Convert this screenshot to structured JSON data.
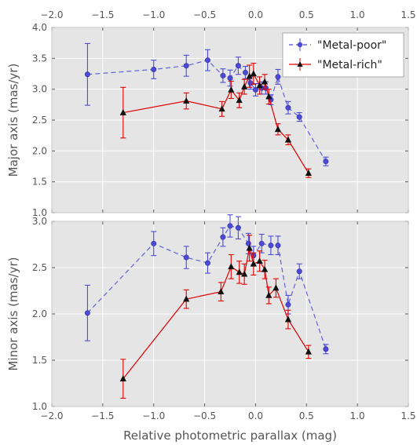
{
  "chart_data": [
    {
      "type": "line",
      "panel": "top",
      "ylabel": "Major axis (mas/yr)",
      "xlim": [
        -2.0,
        1.5
      ],
      "ylim": [
        1.0,
        4.0
      ],
      "x_ticks": [
        "−2.0",
        "−1.5",
        "−1.0",
        "−0.5",
        "0.0",
        "0.5",
        "1.0",
        "1.5"
      ],
      "y_ticks": [
        "1.0",
        "1.5",
        "2.0",
        "2.5",
        "3.0",
        "3.5",
        "4.0"
      ],
      "grid": true,
      "legend_position": "top-right",
      "series": [
        {
          "name": "\"Metal-poor\"",
          "color": "#4a4ad6",
          "style": "dashed",
          "marker": "circle",
          "x": [
            -1.65,
            -1.0,
            -0.68,
            -0.47,
            -0.32,
            -0.25,
            -0.17,
            -0.1,
            -0.05,
            0.0,
            0.06,
            0.1,
            0.15,
            0.22,
            0.32,
            0.43,
            0.69
          ],
          "y": [
            3.24,
            3.32,
            3.38,
            3.47,
            3.22,
            3.18,
            3.38,
            3.27,
            3.1,
            2.99,
            3.02,
            3.02,
            2.83,
            3.2,
            2.7,
            2.55,
            1.83
          ],
          "err": [
            0.5,
            0.15,
            0.17,
            0.17,
            0.11,
            0.13,
            0.14,
            0.1,
            0.1,
            0.1,
            0.1,
            0.1,
            0.08,
            0.12,
            0.1,
            0.07,
            0.07
          ]
        },
        {
          "name": "\"Metal-rich\"",
          "color": "#e00000",
          "style": "solid",
          "marker": "triangle",
          "x": [
            -1.3,
            -0.68,
            -0.33,
            -0.24,
            -0.16,
            -0.11,
            -0.06,
            -0.02,
            0.04,
            0.09,
            0.13,
            0.22,
            0.32,
            0.52
          ],
          "y": [
            2.62,
            2.81,
            2.68,
            2.99,
            2.82,
            3.04,
            3.21,
            3.25,
            3.06,
            3.12,
            2.88,
            2.35,
            2.18,
            1.64
          ],
          "err": [
            0.41,
            0.13,
            0.12,
            0.14,
            0.12,
            0.12,
            0.18,
            0.17,
            0.14,
            0.12,
            0.12,
            0.09,
            0.08,
            0.07
          ]
        }
      ]
    },
    {
      "type": "line",
      "panel": "bottom",
      "xlabel": "Relative photometric parallax (mag)",
      "ylabel": "Minor axis (mas/yr)",
      "xlim": [
        -2.0,
        1.5
      ],
      "ylim": [
        1.0,
        3.0
      ],
      "x_ticks": [
        "−2.0",
        "−1.5",
        "−1.0",
        "−0.5",
        "0.0",
        "0.5",
        "1.0",
        "1.5"
      ],
      "y_ticks": [
        "1.0",
        "1.5",
        "2.0",
        "2.5",
        "3.0"
      ],
      "grid": true,
      "series": [
        {
          "name": "\"Metal-poor\"",
          "color": "#4a4ad6",
          "style": "dashed",
          "marker": "circle",
          "x": [
            -1.65,
            -1.0,
            -0.68,
            -0.47,
            -0.32,
            -0.25,
            -0.17,
            -0.07,
            -0.02,
            0.06,
            0.15,
            0.22,
            0.32,
            0.43,
            0.69
          ],
          "y": [
            2.01,
            2.76,
            2.61,
            2.55,
            2.83,
            2.95,
            2.93,
            2.76,
            2.63,
            2.76,
            2.74,
            2.74,
            2.1,
            2.46,
            1.62
          ],
          "err": [
            0.3,
            0.13,
            0.12,
            0.11,
            0.1,
            0.12,
            0.12,
            0.11,
            0.1,
            0.1,
            0.1,
            0.1,
            0.1,
            0.08,
            0.05
          ]
        },
        {
          "name": "\"Metal-rich\"",
          "color": "#e00000",
          "style": "solid",
          "marker": "triangle",
          "x": [
            -1.3,
            -0.68,
            -0.34,
            -0.24,
            -0.16,
            -0.11,
            -0.06,
            -0.02,
            0.04,
            0.09,
            0.13,
            0.2,
            0.32,
            0.52
          ],
          "y": [
            1.3,
            2.16,
            2.24,
            2.51,
            2.45,
            2.43,
            2.71,
            2.54,
            2.57,
            2.48,
            2.2,
            2.28,
            1.94,
            1.59
          ],
          "err": [
            0.21,
            0.1,
            0.1,
            0.13,
            0.12,
            0.11,
            0.14,
            0.12,
            0.11,
            0.1,
            0.09,
            0.1,
            0.1,
            0.07
          ]
        }
      ]
    }
  ]
}
